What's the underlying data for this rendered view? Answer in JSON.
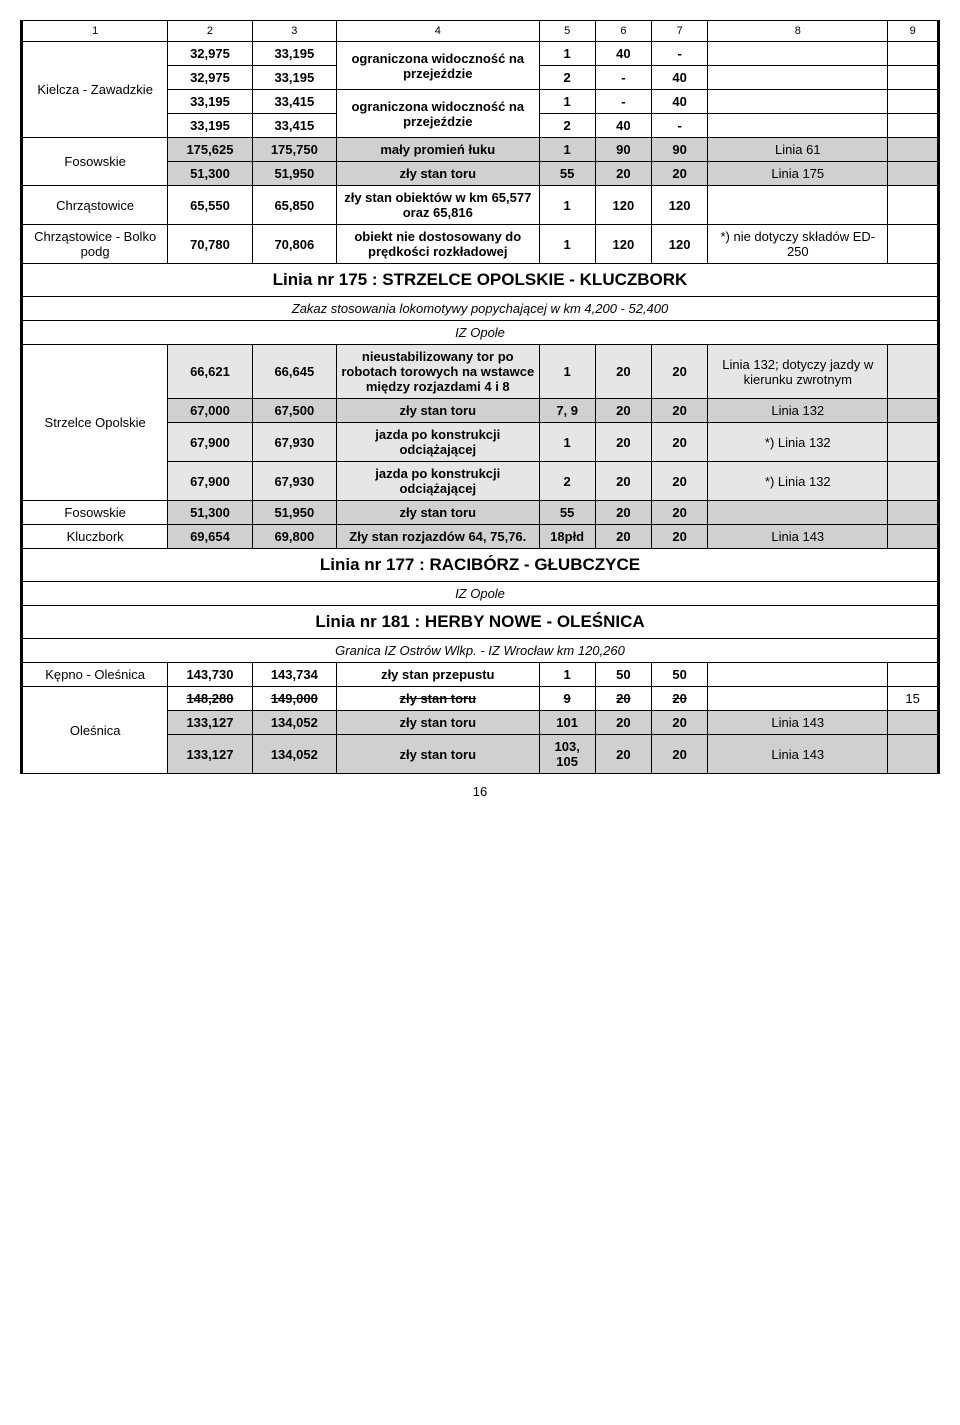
{
  "header": {
    "c1": "1",
    "c2": "2",
    "c3": "3",
    "c4": "4",
    "c5": "5",
    "c6": "6",
    "c7": "7",
    "c8": "8",
    "c9": "9"
  },
  "kielcza": {
    "label": "Kielcza - Zawadzkie",
    "r1": {
      "a": "32,975",
      "b": "33,195",
      "desc": "ograniczona widoczność na przejeździe",
      "t": "1",
      "v1": "40",
      "v2": "-"
    },
    "r2": {
      "a": "32,975",
      "b": "33,195",
      "t": "2",
      "v1": "-",
      "v2": "40"
    },
    "r3": {
      "a": "33,195",
      "b": "33,415",
      "desc": "ograniczona widoczność na przejeździe",
      "t": "1",
      "v1": "-",
      "v2": "40"
    },
    "r4": {
      "a": "33,195",
      "b": "33,415",
      "t": "2",
      "v1": "40",
      "v2": "-"
    }
  },
  "fosowskie1": {
    "label": "Fosowskie",
    "r1": {
      "a": "175,625",
      "b": "175,750",
      "desc": "mały promień łuku",
      "t": "1",
      "v1": "90",
      "v2": "90",
      "note": "Linia 61"
    },
    "r2": {
      "a": "51,300",
      "b": "51,950",
      "desc": "zły stan toru",
      "t": "55",
      "v1": "20",
      "v2": "20",
      "note": "Linia 175"
    }
  },
  "chrzastowice": {
    "label": "Chrząstowice",
    "a": "65,550",
    "b": "65,850",
    "desc": "zły stan obiektów w km 65,577 oraz 65,816",
    "t": "1",
    "v1": "120",
    "v2": "120"
  },
  "bolko": {
    "label": "Chrząstowice - Bolko podg",
    "a": "70,780",
    "b": "70,806",
    "desc": "obiekt nie dostosowany do prędkości rozkładowej",
    "t": "1",
    "v1": "120",
    "v2": "120",
    "note": "*) nie dotyczy składów ED-250"
  },
  "linia175": {
    "title": "Linia nr 175 :  STRZELCE OPOLSKIE - KLUCZBORK",
    "sub": "Zakaz stosowania lokomotywy popychającej w km 4,200 - 52,400",
    "iz": "IZ Opole"
  },
  "strzelce": {
    "label": "Strzelce Opolskie",
    "r1": {
      "a": "66,621",
      "b": "66,645",
      "desc": "nieustabilizowany tor po robotach torowych na wstawce między rozjazdami 4 i 8",
      "t": "1",
      "v1": "20",
      "v2": "20",
      "note": "Linia 132; dotyczy jazdy w kierunku zwrotnym"
    },
    "r2": {
      "a": "67,000",
      "b": "67,500",
      "desc": "zły stan toru",
      "t": "7, 9",
      "v1": "20",
      "v2": "20",
      "note": "Linia 132"
    },
    "r3": {
      "a": "67,900",
      "b": "67,930",
      "desc": "jazda po konstrukcji odciążającej",
      "t": "1",
      "v1": "20",
      "v2": "20",
      "note": "*) Linia 132"
    },
    "r4": {
      "a": "67,900",
      "b": "67,930",
      "desc": "jazda po konstrukcji odciążającej",
      "t": "2",
      "v1": "20",
      "v2": "20",
      "note": "*) Linia 132"
    }
  },
  "fosowskie2": {
    "label": "Fosowskie",
    "a": "51,300",
    "b": "51,950",
    "desc": "zły stan toru",
    "t": "55",
    "v1": "20",
    "v2": "20"
  },
  "kluczbork": {
    "label": "Kluczbork",
    "a": "69,654",
    "b": "69,800",
    "desc": "Zły stan rozjazdów 64, 75,76.",
    "t": "18płd",
    "v1": "20",
    "v2": "20",
    "note": "Linia 143"
  },
  "linia177": {
    "title": "Linia nr 177 :  RACIBÓRZ - GŁUBCZYCE",
    "iz": "IZ Opole"
  },
  "linia181": {
    "title": "Linia nr 181 :  HERBY NOWE - OLEŚNICA",
    "sub": "Granica IZ Ostrów Wlkp. - IZ Wrocław km 120,260"
  },
  "kepno": {
    "label": "Kępno - Oleśnica",
    "a": "143,730",
    "b": "143,734",
    "desc": "zły stan przepustu",
    "t": "1",
    "v1": "50",
    "v2": "50"
  },
  "olesnica": {
    "label": "Oleśnica",
    "r1": {
      "a": "148,280",
      "b": "149,000",
      "desc": "zły stan toru",
      "t": "9",
      "v1": "20",
      "v2": "20",
      "c9": "15"
    },
    "r2": {
      "a": "133,127",
      "b": "134,052",
      "desc": "zły stan  toru",
      "t": "101",
      "v1": "20",
      "v2": "20",
      "note": "Linia 143"
    },
    "r3": {
      "a": "133,127",
      "b": "134,052",
      "desc": "zły stan toru",
      "t": "103, 105",
      "v1": "20",
      "v2": "20",
      "note": "Linia 143"
    }
  },
  "pagenum": "16"
}
